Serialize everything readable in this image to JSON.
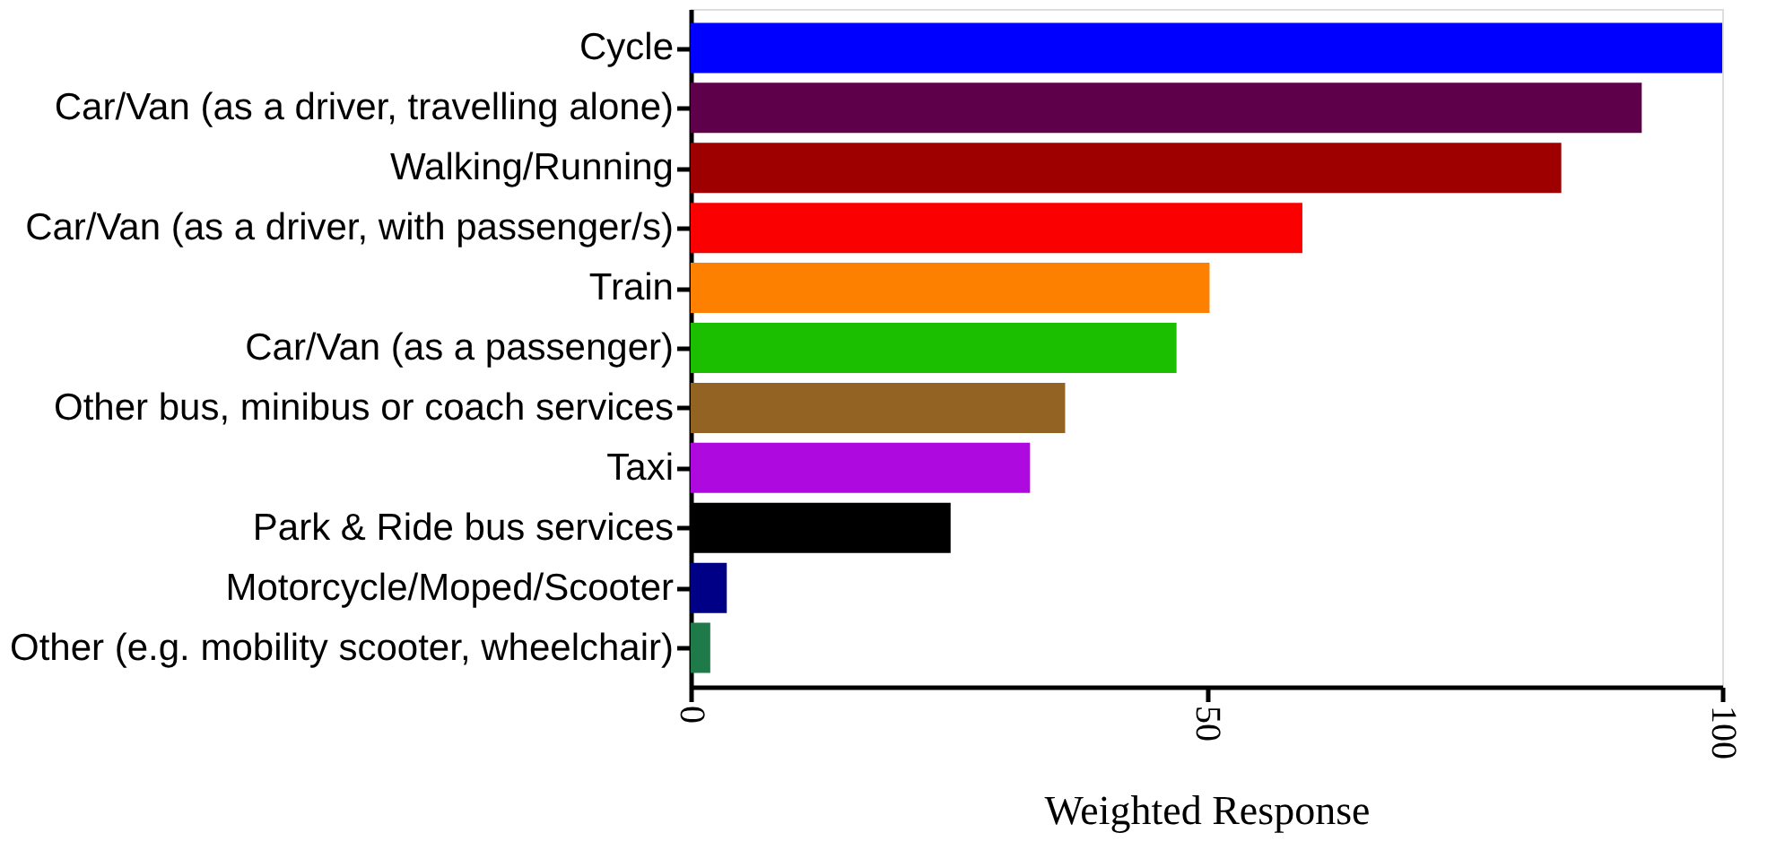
{
  "chart_data": {
    "type": "bar",
    "orientation": "horizontal",
    "categories": [
      "Cycle",
      "Car/Van (as a driver, travelling alone)",
      "Walking/Running",
      "Car/Van (as a driver, with passenger/s)",
      "Train",
      "Car/Van (as a passenger)",
      "Other bus, minibus or coach services",
      "Taxi",
      "Park & Ride bus services",
      "Motorcycle/Moped/Scooter",
      "Other (e.g. mobility scooter, wheelchair)"
    ],
    "values": [
      100,
      92.2,
      84.4,
      59.3,
      50.3,
      47.1,
      36.3,
      32.9,
      25.2,
      3.5,
      1.9
    ],
    "colors": [
      "#0000ff",
      "#5f004a",
      "#9e0000",
      "#fb0000",
      "#fd8000",
      "#1cbf00",
      "#936323",
      "#ae0ae0",
      "#000000",
      "#000087",
      "#1f7a4a"
    ],
    "xlabel": "Weighted Response",
    "xlim": [
      0,
      100
    ],
    "xticks": [
      0,
      50,
      100
    ],
    "grid": false
  }
}
